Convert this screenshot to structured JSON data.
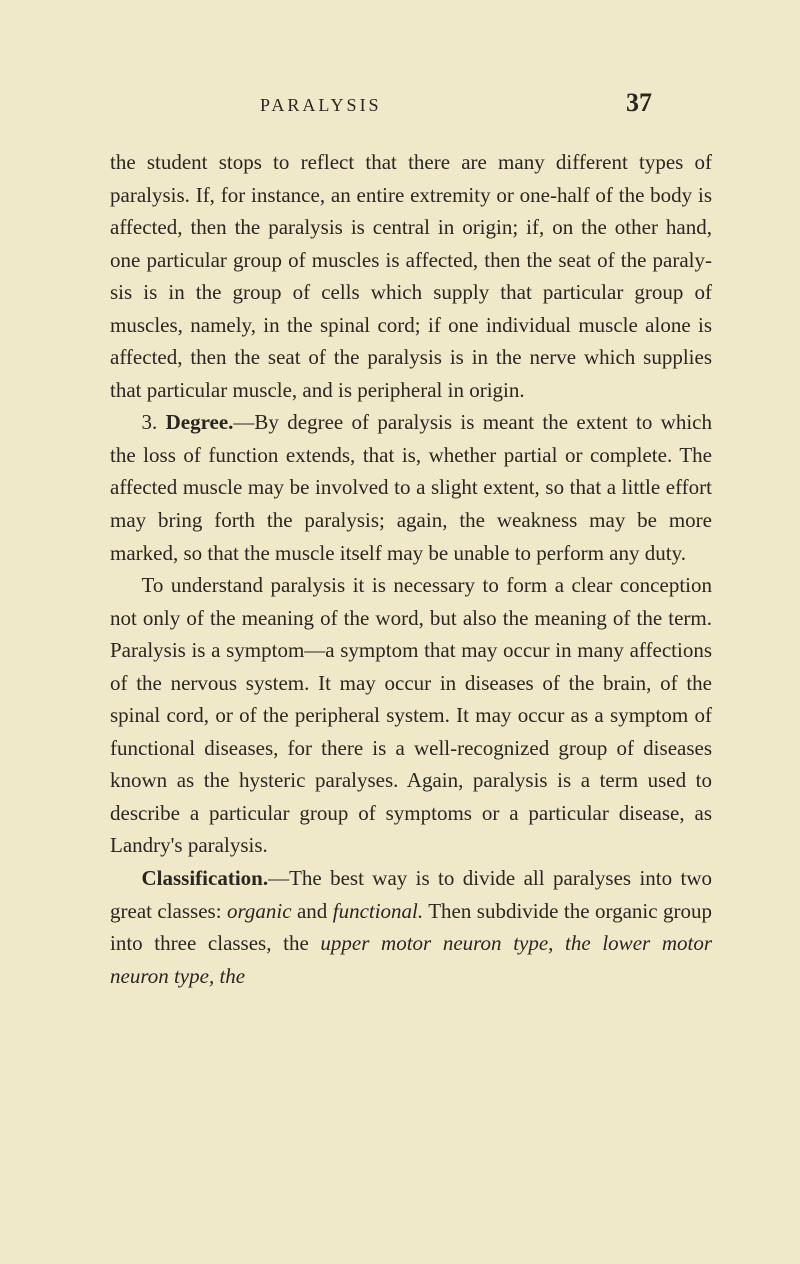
{
  "page": {
    "running_head": "PARALYSIS",
    "page_number": "37",
    "background_color": "#f0e9c9",
    "text_color": "#2a2620",
    "body_fontsize": 21,
    "line_height": 1.55
  },
  "paragraphs": {
    "p1_part1": "the student stops to reflect that there are many different types of paralysis. If, for instance, an entire extremity or one-half of the body is affected, then the paralysis is central in origin; if, on the other hand, one particular group of muscles is affected, then the seat of the paraly­sis is in the group of cells which supply that particular group of muscles, namely, in the spinal cord; if one indi­vidual muscle alone is affected, then the seat of the paralysis is in the nerve which supplies that particular muscle, and is peripheral in origin.",
    "p2_num": "3. ",
    "p2_bold": "Degree.",
    "p2_rest": "—By degree of paralysis is meant the extent to which the loss of function extends, that is, whether partial or complete. The affected muscle may be involved to a slight extent, so that a little effort may bring forth the paralysis; again, the weakness may be more marked, so that the muscle itself may be unable to perform any duty.",
    "p3": "To understand paralysis it is necessary to form a clear conception not only of the meaning of the word, but also the meaning of the term. Paralysis is a symptom—a symptom that may occur in many affections of the ner­vous system. It may occur in diseases of the brain, of the spinal cord, or of the peripheral system. It may occur as a symptom of functional diseases, for there is a well-recognized group of diseases known as the hysteric paralyses. Again, paralysis is a term used to describe a particular group of symptoms or a particular disease, as Landry's paralysis.",
    "p4_bold": "Classification.",
    "p4_part1": "—The best way is to divide all paralyses into two great classes: ",
    "p4_italic1": "organic",
    "p4_part2": " and ",
    "p4_italic2": "functional.",
    "p4_part3": " Then subdivide the organic group into three classes, the ",
    "p4_italic3": "upper motor neuron type, the lower motor neuron type, the"
  }
}
